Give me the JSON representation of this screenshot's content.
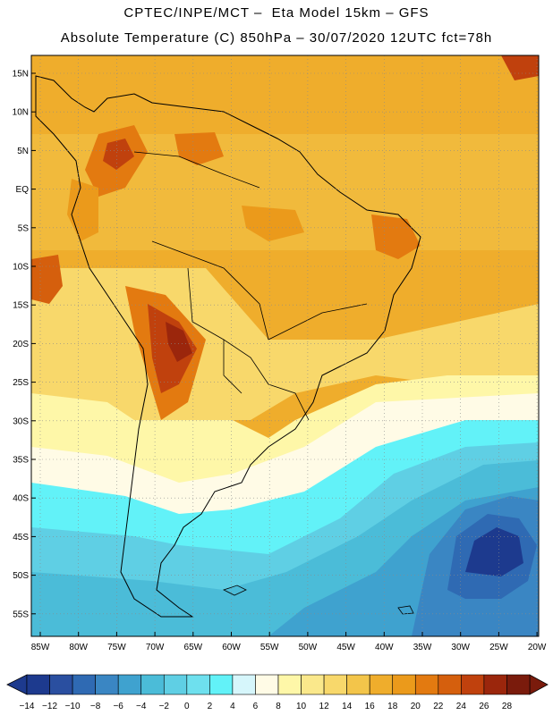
{
  "header": {
    "line1": "CPTEC/INPE/MCT –  Eta Model 15km – GFS",
    "line2": "Absolute Temperature (C) 850hPa – 30/07/2020 12UTC fct=78h"
  },
  "map": {
    "lat_labels": [
      "15N",
      "10N",
      "5N",
      "EQ",
      "5S",
      "10S",
      "15S",
      "20S",
      "25S",
      "30S",
      "35S",
      "40S",
      "45S",
      "50S",
      "55S"
    ],
    "lon_labels": [
      "85W",
      "80W",
      "75W",
      "70W",
      "65W",
      "60W",
      "55W",
      "50W",
      "45W",
      "40W",
      "35W",
      "30W",
      "25W",
      "20W"
    ],
    "grid_style": "dotted"
  },
  "legend": {
    "labels": [
      "-14",
      "-12",
      "-10",
      "-8",
      "-6",
      "-4",
      "-2",
      "0",
      "2",
      "4",
      "6",
      "8",
      "10",
      "12",
      "14",
      "16",
      "18",
      "20",
      "22",
      "24",
      "26",
      "28"
    ],
    "colors": [
      "#1d3a8e",
      "#2a4fa0",
      "#2f6ab3",
      "#3a86c3",
      "#3fa2cf",
      "#4bbcd8",
      "#5fcfe4",
      "#6ee0ee",
      "#62f2f8",
      "#d6f6fb",
      "#fffbe6",
      "#fef7a8",
      "#fae88b",
      "#f8d86b",
      "#f3c54a",
      "#efad2c",
      "#eb9a1b",
      "#e37a10",
      "#d55f0d",
      "#c0410d",
      "#9b260c",
      "#7a1b0c"
    ]
  }
}
